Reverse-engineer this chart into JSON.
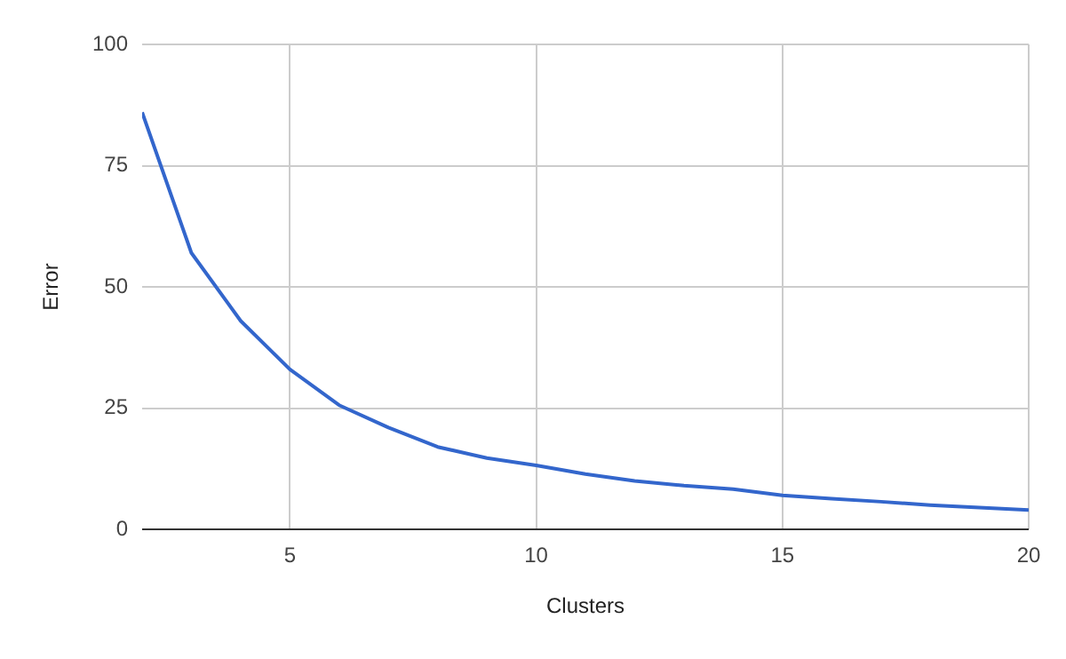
{
  "chart_data": {
    "type": "line",
    "xlabel": "Clusters",
    "ylabel": "Error",
    "x": [
      2,
      3,
      4,
      5,
      6,
      7,
      8,
      9,
      10,
      11,
      12,
      13,
      14,
      15,
      16,
      17,
      18,
      19,
      20
    ],
    "series": [
      {
        "color": "#3366cc",
        "values": [
          86,
          57,
          43,
          33,
          25.6,
          21,
          17,
          14.7,
          13.2,
          11.4,
          10,
          9,
          8.3,
          7,
          6.3,
          5.7,
          5,
          4.5,
          4
        ]
      }
    ],
    "xlim": [
      2,
      20
    ],
    "xticks": [
      5,
      10,
      15,
      20
    ],
    "ylim": [
      0,
      100
    ],
    "yticks": [
      0,
      25,
      50,
      75,
      100
    ],
    "grid": true,
    "legend": false,
    "marker": "none",
    "line_style": "solid"
  }
}
